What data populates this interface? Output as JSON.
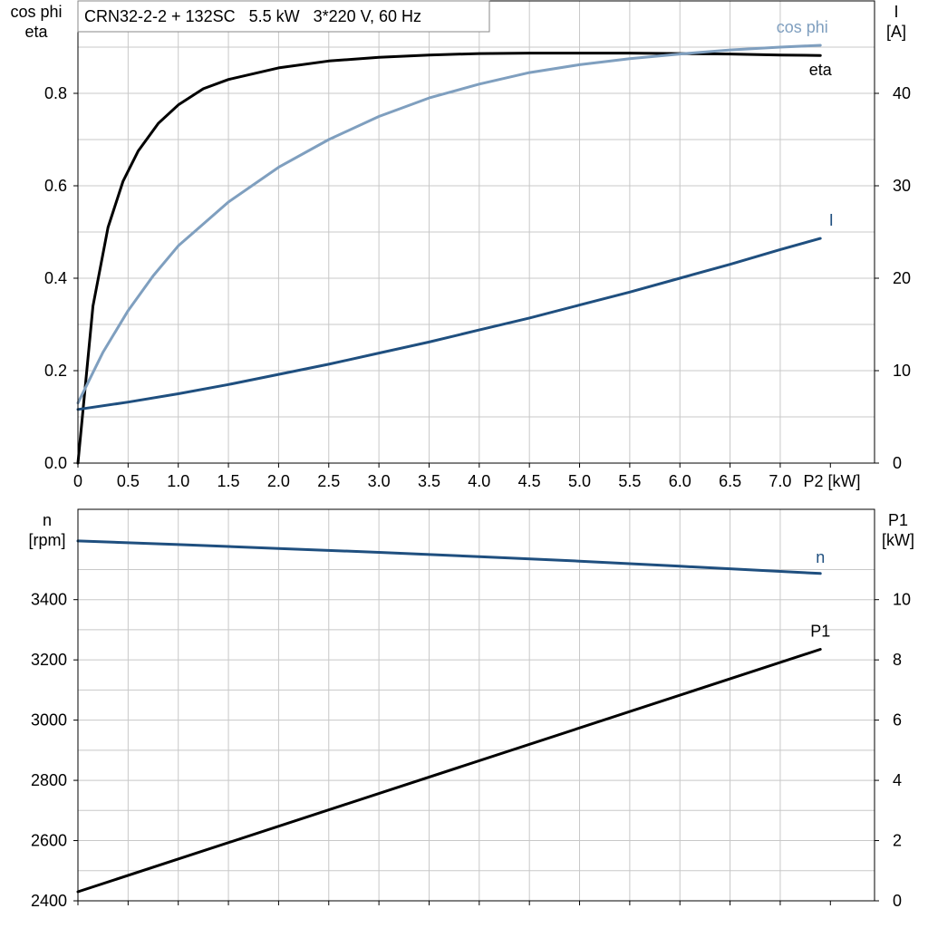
{
  "header": {
    "title": "CRN32-2-2 + 132SC   5.5 kW   3*220 V, 60 Hz"
  },
  "colors": {
    "eta": "#000000",
    "cos_phi": "#7f9fbf",
    "current": "#1f4f7f",
    "speed": "#1f4f7f",
    "p1": "#000000",
    "grid": "#c8c8c8",
    "frame": "#000000"
  },
  "chart_data": [
    {
      "type": "line",
      "x_axis": {
        "label": "P2 [kW]",
        "range": [
          0,
          7.94
        ],
        "ticks": [
          "0",
          "0.5",
          "1.0",
          "1.5",
          "2.0",
          "2.5",
          "3.0",
          "3.5",
          "4.0",
          "4.5",
          "5.0",
          "5.5",
          "6.0",
          "6.5",
          "7.0"
        ],
        "tick_values": [
          0,
          0.5,
          1.0,
          1.5,
          2.0,
          2.5,
          3.0,
          3.5,
          4.0,
          4.5,
          5.0,
          5.5,
          6.0,
          6.5,
          7.0
        ]
      },
      "y_axis_left": {
        "label": "cos phi\neta",
        "label_lines": [
          "cos phi",
          "eta"
        ],
        "range": [
          0,
          1.0
        ],
        "ticks": [
          "0.0",
          "0.2",
          "0.4",
          "0.6",
          "0.8"
        ],
        "tick_values": [
          0,
          0.2,
          0.4,
          0.6,
          0.8
        ]
      },
      "y_axis_right": {
        "label": "I\n[A]",
        "label_lines": [
          "I",
          "[A]"
        ],
        "range": [
          0,
          50
        ],
        "ticks": [
          "0",
          "10",
          "20",
          "30",
          "40"
        ],
        "tick_values": [
          0,
          10,
          20,
          30,
          40
        ]
      },
      "grid": true,
      "series": [
        {
          "name": "eta",
          "axis": "left",
          "x": [
            0,
            0.15,
            0.3,
            0.45,
            0.6,
            0.8,
            1.0,
            1.25,
            1.5,
            2.0,
            2.5,
            3.0,
            3.5,
            4.0,
            4.5,
            5.0,
            5.5,
            6.0,
            6.5,
            7.0,
            7.4
          ],
          "y": [
            0,
            0.34,
            0.51,
            0.61,
            0.675,
            0.735,
            0.775,
            0.81,
            0.83,
            0.855,
            0.87,
            0.878,
            0.883,
            0.886,
            0.887,
            0.887,
            0.887,
            0.886,
            0.885,
            0.883,
            0.882
          ]
        },
        {
          "name": "cos phi",
          "axis": "left",
          "x": [
            0,
            0.25,
            0.5,
            0.75,
            1.0,
            1.5,
            2.0,
            2.5,
            3.0,
            3.5,
            4.0,
            4.5,
            5.0,
            5.5,
            6.0,
            6.5,
            7.0,
            7.4
          ],
          "y": [
            0.13,
            0.24,
            0.33,
            0.405,
            0.47,
            0.565,
            0.64,
            0.7,
            0.75,
            0.79,
            0.82,
            0.845,
            0.862,
            0.875,
            0.885,
            0.894,
            0.9,
            0.904
          ]
        },
        {
          "name": "I",
          "axis": "right",
          "x": [
            0,
            0.5,
            1.0,
            1.5,
            2.0,
            2.5,
            3.0,
            3.5,
            4.0,
            4.5,
            5.0,
            5.5,
            6.0,
            6.5,
            7.0,
            7.4
          ],
          "y": [
            5.8,
            6.6,
            7.5,
            8.5,
            9.6,
            10.7,
            11.9,
            13.1,
            14.4,
            15.7,
            17.1,
            18.5,
            20.0,
            21.5,
            23.1,
            24.3
          ]
        }
      ]
    },
    {
      "type": "line",
      "x_axis": {
        "range": [
          0,
          7.94
        ],
        "tick_values": [
          0,
          0.5,
          1.0,
          1.5,
          2.0,
          2.5,
          3.0,
          3.5,
          4.0,
          4.5,
          5.0,
          5.5,
          6.0,
          6.5,
          7.0
        ]
      },
      "y_axis_left": {
        "label": "n\n[rpm]",
        "label_lines": [
          "n",
          "[rpm]"
        ],
        "range": [
          2400,
          3700
        ],
        "ticks": [
          "2400",
          "2600",
          "2800",
          "3000",
          "3200",
          "3400"
        ],
        "tick_values": [
          2400,
          2600,
          2800,
          3000,
          3200,
          3400
        ]
      },
      "y_axis_right": {
        "label": "P1\n[kW]",
        "label_lines": [
          "P1",
          "[kW]"
        ],
        "range": [
          0,
          13
        ],
        "ticks": [
          "0",
          "2",
          "4",
          "6",
          "8",
          "10"
        ],
        "tick_values": [
          0,
          2,
          4,
          6,
          8,
          10
        ]
      },
      "grid": true,
      "series": [
        {
          "name": "n",
          "axis": "left",
          "x": [
            0,
            1.0,
            2.0,
            3.0,
            4.0,
            5.0,
            6.0,
            7.0,
            7.4
          ],
          "y": [
            3595,
            3583,
            3570,
            3557,
            3543,
            3528,
            3511,
            3494,
            3487
          ]
        },
        {
          "name": "P1",
          "axis": "right",
          "x": [
            0,
            7.4
          ],
          "y": [
            0.3,
            8.35
          ]
        }
      ]
    }
  ]
}
